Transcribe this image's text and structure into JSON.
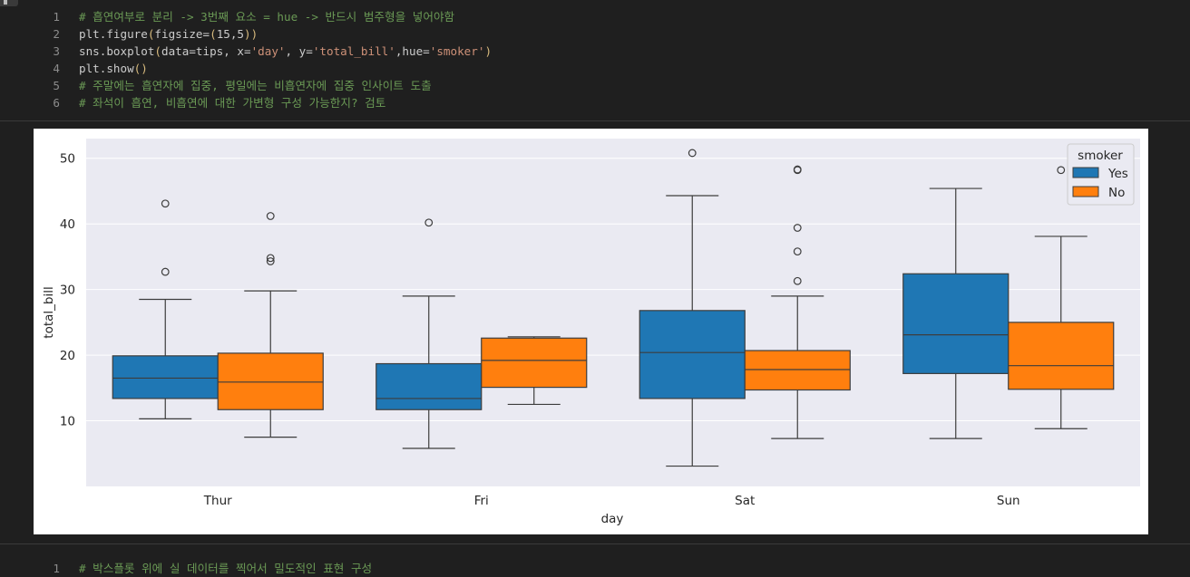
{
  "cell1": {
    "lines": [
      {
        "n": "1",
        "parts": [
          {
            "t": "# 흡연여부로 분리 -> 3번째 요소 = hue -> 반드시 범주형을 넣어야함",
            "c": "cmt"
          }
        ]
      },
      {
        "n": "2",
        "parts": [
          {
            "t": "plt.figure",
            "c": ""
          },
          {
            "t": "(",
            "c": "paren"
          },
          {
            "t": "figsize=",
            "c": ""
          },
          {
            "t": "(",
            "c": "paren"
          },
          {
            "t": "15,5",
            "c": ""
          },
          {
            "t": "))",
            "c": "paren"
          }
        ]
      },
      {
        "n": "3",
        "parts": [
          {
            "t": "sns.boxplot",
            "c": ""
          },
          {
            "t": "(",
            "c": "paren"
          },
          {
            "t": "data=tips, x=",
            "c": ""
          },
          {
            "t": "'day'",
            "c": "str"
          },
          {
            "t": ", y=",
            "c": ""
          },
          {
            "t": "'total_bill'",
            "c": "str"
          },
          {
            "t": ",hue=",
            "c": ""
          },
          {
            "t": "'smoker'",
            "c": "str"
          },
          {
            "t": ")",
            "c": "paren"
          }
        ]
      },
      {
        "n": "4",
        "parts": [
          {
            "t": "plt.show",
            "c": ""
          },
          {
            "t": "()",
            "c": "paren"
          }
        ]
      },
      {
        "n": "5",
        "parts": [
          {
            "t": "# 주말에는 흡연자에 집중, 평일에는 비흡연자에 집중 인사이트 도출",
            "c": "cmt"
          }
        ]
      },
      {
        "n": "6",
        "parts": [
          {
            "t": "# 좌석이 흡연, 비흡연에 대한 가변형 구성 가능한지? 검토",
            "c": "cmt"
          }
        ]
      }
    ]
  },
  "cell2": {
    "lines": [
      {
        "n": "1",
        "parts": [
          {
            "t": "# 박스플롯 위에 실 데이터를 찍어서 밀도적인 표현 구성",
            "c": "cmt"
          }
        ]
      }
    ]
  },
  "chart_data": {
    "type": "boxplot",
    "categories": [
      "Thur",
      "Fri",
      "Sat",
      "Sun"
    ],
    "xlabel": "day",
    "ylabel": "total_bill",
    "ylim": [
      0,
      53
    ],
    "yticks": [
      10,
      20,
      30,
      40,
      50
    ],
    "grid": true,
    "legend": {
      "title": "smoker",
      "placement": "top-right"
    },
    "series": [
      {
        "name": "Yes",
        "color": "#1f77b4",
        "boxes": [
          {
            "whislo": 10.3,
            "q1": 13.4,
            "med": 16.5,
            "q3": 19.9,
            "whishi": 28.5,
            "fliers": [
              32.7,
              43.1
            ]
          },
          {
            "whislo": 5.8,
            "q1": 11.7,
            "med": 13.4,
            "q3": 18.7,
            "whishi": 29.0,
            "fliers": [
              40.2
            ]
          },
          {
            "whislo": 3.1,
            "q1": 13.4,
            "med": 20.4,
            "q3": 26.8,
            "whishi": 44.3,
            "fliers": [
              50.8
            ]
          },
          {
            "whislo": 7.3,
            "q1": 17.2,
            "med": 23.1,
            "q3": 32.4,
            "whishi": 45.4,
            "fliers": []
          }
        ]
      },
      {
        "name": "No",
        "color": "#ff7f0e",
        "boxes": [
          {
            "whislo": 7.5,
            "q1": 11.7,
            "med": 15.9,
            "q3": 20.3,
            "whishi": 29.8,
            "fliers": [
              34.3,
              34.8,
              41.2
            ]
          },
          {
            "whislo": 12.5,
            "q1": 15.1,
            "med": 19.2,
            "q3": 22.6,
            "whishi": 22.8,
            "fliers": []
          },
          {
            "whislo": 7.3,
            "q1": 14.7,
            "med": 17.8,
            "q3": 20.7,
            "whishi": 29.0,
            "fliers": [
              31.3,
              35.8,
              39.4,
              48.2,
              48.3
            ]
          },
          {
            "whislo": 8.8,
            "q1": 14.8,
            "med": 18.4,
            "q3": 25.0,
            "whishi": 38.1,
            "fliers": [
              48.2
            ]
          }
        ]
      }
    ]
  }
}
